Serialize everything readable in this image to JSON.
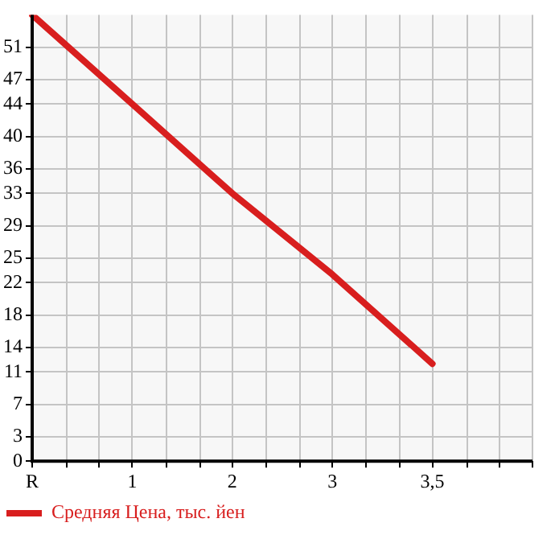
{
  "chart_data": {
    "type": "line",
    "categories": [
      "R",
      "1",
      "2",
      "3",
      "3,5",
      null
    ],
    "series": [
      {
        "name": "Средняя Цена, тыс. йен",
        "color": "#d81e1e",
        "values": [
          55,
          44,
          33,
          23,
          12,
          null
        ]
      }
    ],
    "ylim": [
      0,
      55
    ],
    "yticks": [
      0,
      3,
      7,
      11,
      14,
      18,
      22,
      25,
      29,
      33,
      36,
      40,
      44,
      47,
      51
    ],
    "grid": true,
    "legend": "bottom left",
    "marker": "none",
    "line_style": "solid"
  }
}
